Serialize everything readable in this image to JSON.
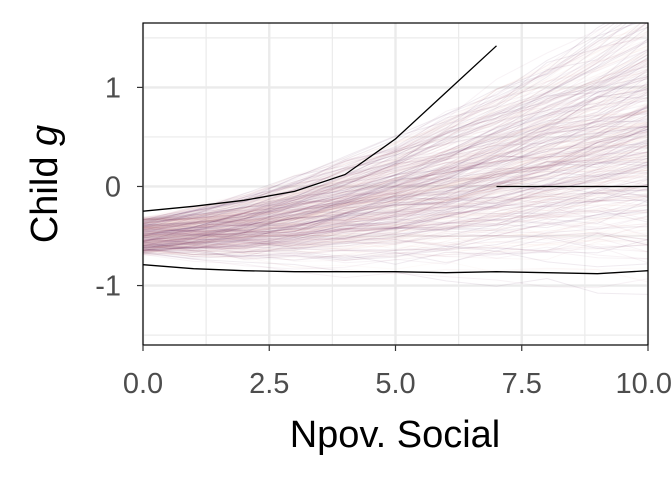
{
  "chart_data": {
    "type": "line",
    "title": "",
    "xlabel": "Npov. Social",
    "ylabel_main": "Child ",
    "ylabel_italic": "g",
    "xlim": [
      0,
      10
    ],
    "ylim": [
      -1.6,
      1.65
    ],
    "x_ticks": [
      0,
      2.5,
      5,
      7.5,
      10
    ],
    "x_tick_labels": [
      "0.0",
      "2.5",
      "5.0",
      "7.5",
      "10.0"
    ],
    "y_ticks": [
      -1,
      0,
      1
    ],
    "y_tick_labels": [
      "-1",
      "0",
      "1"
    ],
    "grid": true,
    "legend": "none",
    "background": "#ffffff",
    "gridline_color": "#ebebeb",
    "ensemble_colors": [
      "#5e1f5a",
      "#8a3a6a",
      "#c98a8a",
      "#e8b8a8"
    ],
    "envelope_color": "#000000",
    "series": [
      {
        "role": "upper-envelope",
        "x": [
          0,
          1,
          2,
          3,
          4,
          5,
          6,
          7
        ],
        "y": [
          -0.25,
          -0.2,
          -0.14,
          -0.05,
          0.12,
          0.48,
          0.95,
          1.42
        ]
      },
      {
        "role": "median-line",
        "x": [
          7,
          8,
          9,
          10
        ],
        "y": [
          0.0,
          0.0,
          0.0,
          0.0
        ]
      },
      {
        "role": "lower-envelope",
        "x": [
          0,
          1,
          2,
          3,
          4,
          5,
          6,
          7,
          8,
          9,
          10
        ],
        "y": [
          -0.79,
          -0.83,
          -0.85,
          -0.86,
          -0.86,
          -0.86,
          -0.87,
          -0.86,
          -0.87,
          -0.88,
          -0.85
        ]
      }
    ],
    "ensemble_center": {
      "x": [
        0,
        1,
        2,
        3,
        4,
        5,
        6,
        7,
        8,
        9,
        10
      ],
      "y": [
        -0.5,
        -0.49,
        -0.47,
        -0.43,
        -0.38,
        -0.32,
        -0.25,
        -0.17,
        -0.1,
        -0.03,
        0.05
      ]
    }
  }
}
